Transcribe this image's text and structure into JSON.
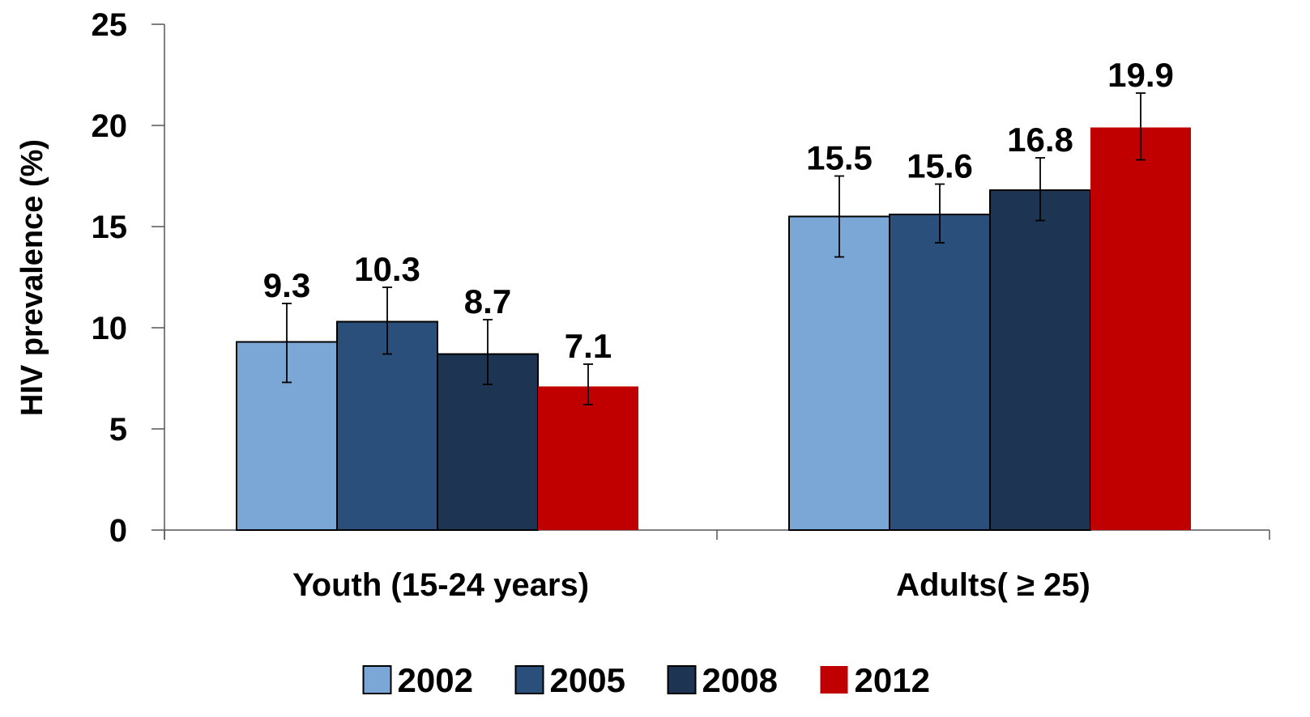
{
  "chart_data": {
    "type": "bar",
    "title": "",
    "xlabel": "",
    "ylabel": "HIV prevalence (%)",
    "ylim": [
      0,
      25
    ],
    "yticks": [
      "0",
      "5",
      "10",
      "15",
      "20",
      "25"
    ],
    "grid": false,
    "legend_position": "bottom",
    "categories": [
      "Youth (15-24 years)",
      "Adults( ≥ 25)"
    ],
    "series": [
      {
        "name": "2002",
        "color": "#7ba7d7",
        "values": [
          9.3,
          15.5
        ],
        "labels": [
          "9.3",
          "15.5"
        ],
        "error_low": [
          7.3,
          13.5
        ],
        "error_high": [
          11.2,
          17.5
        ]
      },
      {
        "name": "2005",
        "color": "#2a4f7a",
        "values": [
          10.3,
          15.6
        ],
        "labels": [
          "10.3",
          "15.6"
        ],
        "error_low": [
          8.7,
          14.2
        ],
        "error_high": [
          12.0,
          17.1
        ]
      },
      {
        "name": "2008",
        "color": "#1d3553",
        "values": [
          8.7,
          16.8
        ],
        "labels": [
          "8.7",
          "16.8"
        ],
        "error_low": [
          7.2,
          15.3
        ],
        "error_high": [
          10.4,
          18.4
        ]
      },
      {
        "name": "2012",
        "color": "#c00000",
        "values": [
          7.1,
          19.9
        ],
        "labels": [
          "7.1",
          "19.9"
        ],
        "error_low": [
          6.2,
          18.3
        ],
        "error_high": [
          8.2,
          21.6
        ]
      }
    ]
  }
}
